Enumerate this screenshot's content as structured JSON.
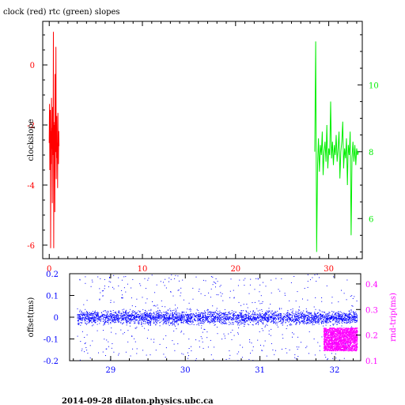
{
  "title": "clock (red) rtc (green) slopes",
  "footer": "2014-09-28  dilaton.physics.ubc.ca",
  "colors": {
    "clock": "#ff0000",
    "rtc": "#00ee00",
    "offset": "#0000ff",
    "rndtrip": "#ff00ff",
    "frame": "#000000"
  },
  "chart_data": [
    {
      "type": "line",
      "title": "clock (red) rtc (green) slopes",
      "ylabel": "clockslope",
      "y2label": "",
      "xlim": [
        -0.7,
        33.6
      ],
      "ylim": [
        -6.45,
        1.45
      ],
      "y2lim": [
        4.8,
        11.9
      ],
      "x_ticks": [
        0,
        10,
        20,
        30
      ],
      "y_ticks": [
        0,
        -2,
        -4,
        -6
      ],
      "y2_ticks": [
        10,
        8,
        6
      ],
      "grid": false,
      "series": [
        {
          "name": "clock",
          "axis": "left",
          "color": "#ff0000",
          "x": [
            0.0,
            0.03,
            0.06,
            0.09,
            0.12,
            0.15,
            0.18,
            0.21,
            0.24,
            0.27,
            0.3,
            0.33,
            0.36,
            0.39,
            0.42,
            0.45,
            0.48,
            0.51,
            0.54,
            0.57,
            0.6,
            0.63,
            0.66,
            0.69,
            0.72,
            0.75,
            0.78,
            0.81,
            0.84,
            0.87,
            0.9,
            0.93,
            0.96,
            0.99,
            1.02,
            1.05
          ],
          "values": [
            -2.6,
            -1.3,
            -3.5,
            -2.0,
            -1.5,
            -6.1,
            -2.2,
            -3.3,
            -1.1,
            -2.8,
            -2.1,
            -4.6,
            -1.4,
            -3.0,
            -2.5,
            1.1,
            -6.1,
            -2.0,
            -3.4,
            -1.9,
            -4.9,
            -0.3,
            -2.9,
            -2.2,
            0.6,
            -3.8,
            -2.4,
            -1.7,
            -3.1,
            -2.6,
            -4.1,
            -1.6,
            -2.9,
            -3.3,
            -2.2,
            -2.7
          ]
        },
        {
          "name": "rtc",
          "axis": "right",
          "color": "#00ee00",
          "x": [
            28.5,
            28.6,
            28.7,
            28.8,
            28.9,
            29.0,
            29.1,
            29.2,
            29.3,
            29.4,
            29.5,
            29.6,
            29.7,
            29.8,
            29.9,
            30.0,
            30.1,
            30.2,
            30.3,
            30.4,
            30.5,
            30.6,
            30.7,
            30.8,
            30.9,
            31.0,
            31.1,
            31.2,
            31.3,
            31.4,
            31.5,
            31.6,
            31.7,
            31.8,
            31.9,
            32.0,
            32.1,
            32.2,
            32.3,
            32.4,
            32.5,
            32.6,
            32.7,
            32.8,
            32.9,
            33.0,
            33.1,
            33.2
          ],
          "values": [
            8.0,
            11.3,
            5.0,
            7.6,
            8.4,
            7.4,
            8.2,
            7.9,
            8.6,
            7.3,
            8.0,
            8.3,
            7.7,
            8.8,
            7.5,
            8.1,
            7.9,
            9.5,
            7.8,
            8.3,
            7.6,
            8.2,
            7.9,
            8.5,
            7.7,
            8.1,
            8.6,
            7.2,
            8.0,
            8.3,
            8.9,
            7.5,
            8.1,
            7.8,
            8.4,
            7.0,
            8.2,
            7.9,
            8.6,
            5.5,
            7.8,
            8.3,
            7.7,
            8.2,
            7.6,
            8.1,
            7.9,
            8.0
          ]
        }
      ]
    },
    {
      "type": "scatter",
      "ylabel": "offset(ms)",
      "y2label": "rnd-trip(ms)",
      "xlim": [
        28.45,
        32.35
      ],
      "ylim": [
        -0.2,
        0.2
      ],
      "y2lim": [
        0.1,
        0.44
      ],
      "x_ticks": [
        29,
        30,
        31,
        32
      ],
      "y_ticks": [
        0.2,
        0.1,
        0,
        -0.1,
        -0.2
      ],
      "y_tick_labels": [
        "0.2",
        "0.1",
        "0",
        "-0.1",
        "-0.2"
      ],
      "y2_ticks": [
        0.4,
        0.3,
        0.2,
        0.1
      ],
      "y2_tick_labels": [
        "0.4",
        "0.3",
        "0.2",
        "0.1"
      ],
      "grid": false,
      "series": [
        {
          "name": "offset",
          "axis": "left",
          "color": "#0000ff",
          "x_range": [
            28.55,
            32.3
          ],
          "center": 0.0,
          "core_spread": 0.015,
          "outlier_range": [
            -0.2,
            0.2
          ]
        },
        {
          "name": "rnd-trip",
          "axis": "right",
          "color": "#ff00ff",
          "x_range": [
            31.85,
            32.3
          ],
          "value_range": [
            0.14,
            0.23
          ]
        }
      ]
    }
  ]
}
